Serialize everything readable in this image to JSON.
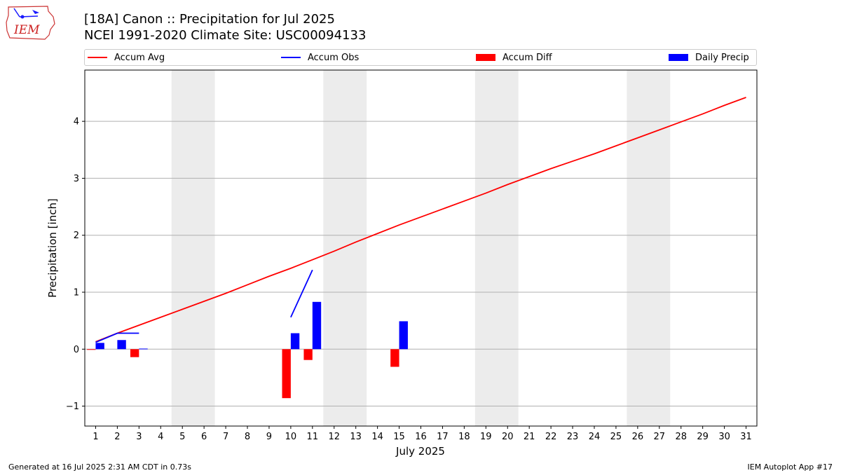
{
  "header": {
    "logo_text": "IEM",
    "title_line1": "[18A] Canon :: Precipitation for Jul 2025",
    "title_line2": "NCEI 1991-2020 Climate Site: USC00094133"
  },
  "legend": {
    "items": [
      {
        "label": "Accum Avg",
        "kind": "line",
        "color": "#ff0000"
      },
      {
        "label": "Accum Obs",
        "kind": "line",
        "color": "#0000ff"
      },
      {
        "label": "Accum Diff",
        "kind": "box",
        "color": "#ff0000"
      },
      {
        "label": "Daily Precip",
        "kind": "box",
        "color": "#0000ff"
      }
    ]
  },
  "chart_data": {
    "type": "bar",
    "xlabel": "July 2025",
    "ylabel": "Precipitation [inch]",
    "xlim": [
      0.5,
      31.5
    ],
    "ylim": [
      -1.35,
      4.9
    ],
    "y_ticks": [
      -1,
      0,
      1,
      2,
      3,
      4
    ],
    "y_tick_labels": [
      "−1",
      "0",
      "1",
      "2",
      "3",
      "4"
    ],
    "x_ticks": [
      1,
      2,
      3,
      4,
      5,
      6,
      7,
      8,
      9,
      10,
      11,
      12,
      13,
      14,
      15,
      16,
      17,
      18,
      19,
      20,
      21,
      22,
      23,
      24,
      25,
      26,
      27,
      28,
      29,
      30,
      31
    ],
    "x_tick_labels": [
      "1",
      "2",
      "3",
      "4",
      "5",
      "6",
      "7",
      "8",
      "9",
      "10",
      "11",
      "12",
      "13",
      "14",
      "15",
      "16",
      "17",
      "18",
      "19",
      "20",
      "21",
      "22",
      "23",
      "24",
      "25",
      "26",
      "27",
      "28",
      "29",
      "30",
      "31"
    ],
    "grid": "horizontal",
    "weekend_shading": [
      [
        4.5,
        6.5
      ],
      [
        11.5,
        13.5
      ],
      [
        18.5,
        20.5
      ],
      [
        25.5,
        27.5
      ]
    ],
    "series": [
      {
        "name": "Accum Avg",
        "kind": "line",
        "color": "#ff0000",
        "x": [
          1,
          2,
          3,
          4,
          5,
          6,
          7,
          8,
          9,
          10,
          11,
          12,
          13,
          14,
          15,
          16,
          17,
          18,
          19,
          20,
          21,
          22,
          23,
          24,
          25,
          26,
          27,
          28,
          29,
          30,
          31
        ],
        "values": [
          0.13,
          0.28,
          0.42,
          0.56,
          0.7,
          0.84,
          0.98,
          1.13,
          1.28,
          1.42,
          1.57,
          1.72,
          1.88,
          2.03,
          2.18,
          2.32,
          2.46,
          2.6,
          2.74,
          2.89,
          3.03,
          3.17,
          3.3,
          3.43,
          3.57,
          3.71,
          3.85,
          3.99,
          4.13,
          4.28,
          4.42
        ]
      },
      {
        "name": "Accum Obs",
        "kind": "line",
        "color": "#0000ff",
        "segments": [
          {
            "x": [
              1,
              2,
              3
            ],
            "values": [
              0.12,
              0.28,
              0.28
            ]
          },
          {
            "x": [
              10,
              11
            ],
            "values": [
              0.56,
              1.39
            ]
          }
        ]
      },
      {
        "name": "Accum Diff",
        "kind": "bar",
        "color": "#ff0000",
        "x": [
          1,
          3,
          10,
          11,
          15
        ],
        "values": [
          -0.01,
          -0.14,
          -0.86,
          -0.19,
          -0.31
        ]
      },
      {
        "name": "Daily Precip",
        "kind": "bar",
        "color": "#0000ff",
        "x": [
          1,
          2,
          3,
          10,
          11,
          15
        ],
        "values": [
          0.11,
          0.16,
          0.01,
          0.28,
          0.83,
          0.49
        ]
      }
    ]
  },
  "footer": {
    "left": "Generated at 16 Jul 2025 2:31 AM CDT in 0.73s",
    "right": "IEM Autoplot App #17"
  }
}
